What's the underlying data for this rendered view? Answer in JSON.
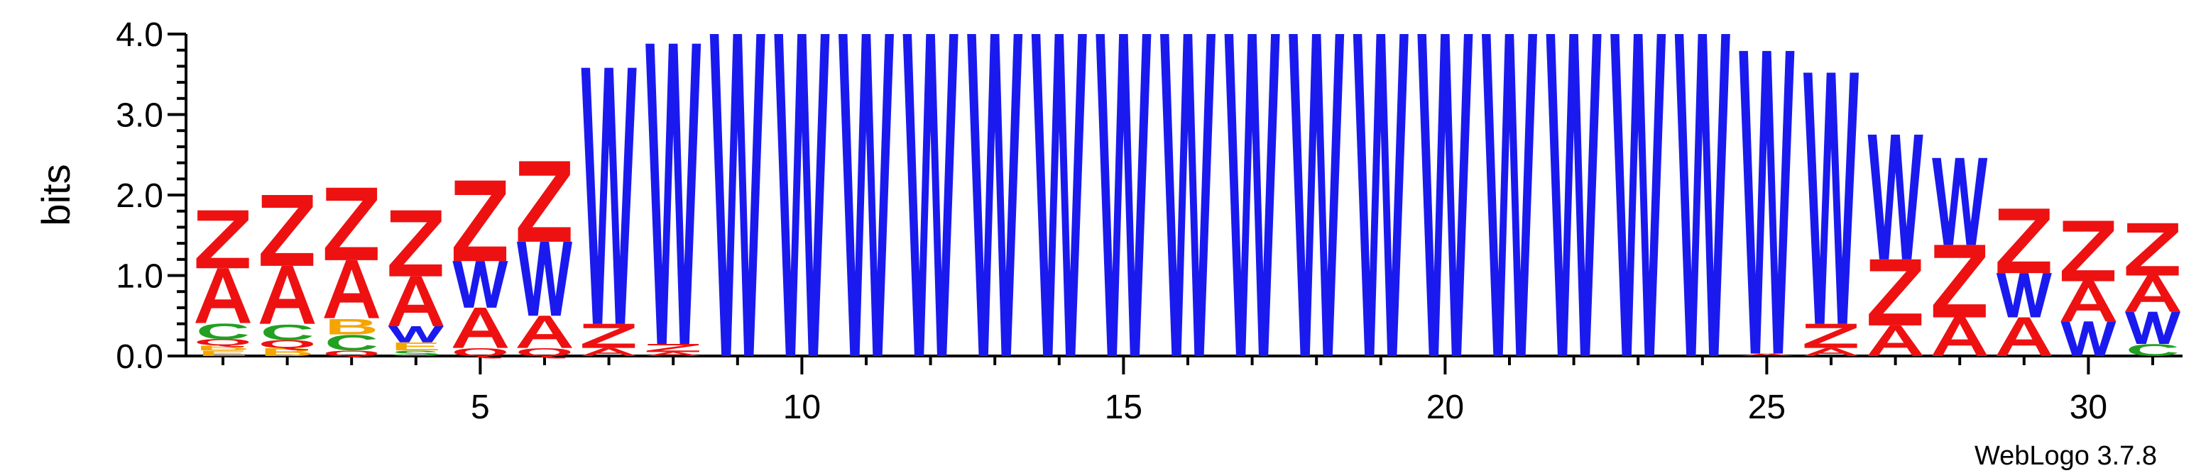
{
  "chart_data": {
    "type": "sequence-logo",
    "ylabel": "bits",
    "ylim": [
      0,
      4.0
    ],
    "y_ticks": [
      "0.0",
      "1.0",
      "2.0",
      "3.0",
      "4.0"
    ],
    "x_ticks": [
      "5",
      "10",
      "15",
      "20",
      "25",
      "30"
    ],
    "credit": "WebLogo 3.7.8",
    "colors": {
      "Z": "#ee1111",
      "A": "#ee1111",
      "W": "#1a1aee",
      "C": "#22a022",
      "B": "#f5a500",
      "Q": "#ee1111",
      "E": "#f5a500",
      "S": "#22a022"
    },
    "positions": [
      {
        "pos": 1,
        "stack": [
          {
            "l": "E",
            "h": 0.07
          },
          {
            "l": "B",
            "h": 0.06
          },
          {
            "l": "Q",
            "h": 0.08
          },
          {
            "l": "C",
            "h": 0.2
          },
          {
            "l": "A",
            "h": 0.68
          },
          {
            "l": "Z",
            "h": 0.72
          }
        ]
      },
      {
        "pos": 2,
        "stack": [
          {
            "l": "B",
            "h": 0.1
          },
          {
            "l": "Q",
            "h": 0.1
          },
          {
            "l": "C",
            "h": 0.2
          },
          {
            "l": "A",
            "h": 0.72
          },
          {
            "l": "Z",
            "h": 0.88
          }
        ]
      },
      {
        "pos": 3,
        "stack": [
          {
            "l": "Q",
            "h": 0.07
          },
          {
            "l": "C",
            "h": 0.2
          },
          {
            "l": "B",
            "h": 0.2
          },
          {
            "l": "A",
            "h": 0.72
          },
          {
            "l": "Z",
            "h": 0.9
          }
        ]
      },
      {
        "pos": 4,
        "stack": [
          {
            "l": "S",
            "h": 0.07
          },
          {
            "l": "E",
            "h": 0.1
          },
          {
            "l": "W",
            "h": 0.2
          },
          {
            "l": "A",
            "h": 0.62
          },
          {
            "l": "Z",
            "h": 0.82
          }
        ]
      },
      {
        "pos": 5,
        "stack": [
          {
            "l": "Q",
            "h": 0.1
          },
          {
            "l": "A",
            "h": 0.5
          },
          {
            "l": "W",
            "h": 0.58
          },
          {
            "l": "Z",
            "h": 1.0
          }
        ]
      },
      {
        "pos": 6,
        "stack": [
          {
            "l": "Q",
            "h": 0.1
          },
          {
            "l": "A",
            "h": 0.4
          },
          {
            "l": "W",
            "h": 0.92
          },
          {
            "l": "Z",
            "h": 1.0
          }
        ]
      },
      {
        "pos": 7,
        "stack": [
          {
            "l": "A",
            "h": 0.1
          },
          {
            "l": "Z",
            "h": 0.3
          },
          {
            "l": "W",
            "h": 3.18
          }
        ]
      },
      {
        "pos": 8,
        "stack": [
          {
            "l": "A",
            "h": 0.05
          },
          {
            "l": "Z",
            "h": 0.1
          },
          {
            "l": "W",
            "h": 3.73
          }
        ]
      },
      {
        "pos": 9,
        "stack": [
          {
            "l": "W",
            "h": 4.0
          }
        ]
      },
      {
        "pos": 10,
        "stack": [
          {
            "l": "W",
            "h": 4.0
          }
        ]
      },
      {
        "pos": 11,
        "stack": [
          {
            "l": "W",
            "h": 4.0
          }
        ]
      },
      {
        "pos": 12,
        "stack": [
          {
            "l": "W",
            "h": 4.0
          }
        ]
      },
      {
        "pos": 13,
        "stack": [
          {
            "l": "W",
            "h": 4.0
          }
        ]
      },
      {
        "pos": 14,
        "stack": [
          {
            "l": "W",
            "h": 4.0
          }
        ]
      },
      {
        "pos": 15,
        "stack": [
          {
            "l": "W",
            "h": 4.0
          }
        ]
      },
      {
        "pos": 16,
        "stack": [
          {
            "l": "W",
            "h": 4.0
          }
        ]
      },
      {
        "pos": 17,
        "stack": [
          {
            "l": "W",
            "h": 4.0
          }
        ]
      },
      {
        "pos": 18,
        "stack": [
          {
            "l": "W",
            "h": 4.0
          }
        ]
      },
      {
        "pos": 19,
        "stack": [
          {
            "l": "W",
            "h": 4.0
          }
        ]
      },
      {
        "pos": 20,
        "stack": [
          {
            "l": "W",
            "h": 4.0
          }
        ]
      },
      {
        "pos": 21,
        "stack": [
          {
            "l": "W",
            "h": 4.0
          }
        ]
      },
      {
        "pos": 22,
        "stack": [
          {
            "l": "W",
            "h": 4.0
          }
        ]
      },
      {
        "pos": 23,
        "stack": [
          {
            "l": "W",
            "h": 4.0
          }
        ]
      },
      {
        "pos": 24,
        "stack": [
          {
            "l": "W",
            "h": 4.0
          }
        ]
      },
      {
        "pos": 25,
        "stack": [
          {
            "l": "A",
            "h": 0.03
          },
          {
            "l": "W",
            "h": 3.76
          }
        ]
      },
      {
        "pos": 26,
        "stack": [
          {
            "l": "A",
            "h": 0.1
          },
          {
            "l": "Z",
            "h": 0.3
          },
          {
            "l": "W",
            "h": 3.12
          }
        ]
      },
      {
        "pos": 27,
        "stack": [
          {
            "l": "A",
            "h": 0.38
          },
          {
            "l": "Z",
            "h": 0.82
          },
          {
            "l": "W",
            "h": 1.55
          }
        ]
      },
      {
        "pos": 28,
        "stack": [
          {
            "l": "A",
            "h": 0.48
          },
          {
            "l": "Z",
            "h": 0.9
          },
          {
            "l": "W",
            "h": 1.08
          }
        ]
      },
      {
        "pos": 29,
        "stack": [
          {
            "l": "A",
            "h": 0.48
          },
          {
            "l": "W",
            "h": 0.55
          },
          {
            "l": "Z",
            "h": 0.8
          }
        ]
      },
      {
        "pos": 30,
        "stack": [
          {
            "l": "W",
            "h": 0.43
          },
          {
            "l": "A",
            "h": 0.5
          },
          {
            "l": "Z",
            "h": 0.75
          }
        ]
      },
      {
        "pos": 31,
        "stack": [
          {
            "l": "C",
            "h": 0.15
          },
          {
            "l": "W",
            "h": 0.4
          },
          {
            "l": "A",
            "h": 0.45
          },
          {
            "l": "Z",
            "h": 0.65
          }
        ]
      }
    ]
  }
}
